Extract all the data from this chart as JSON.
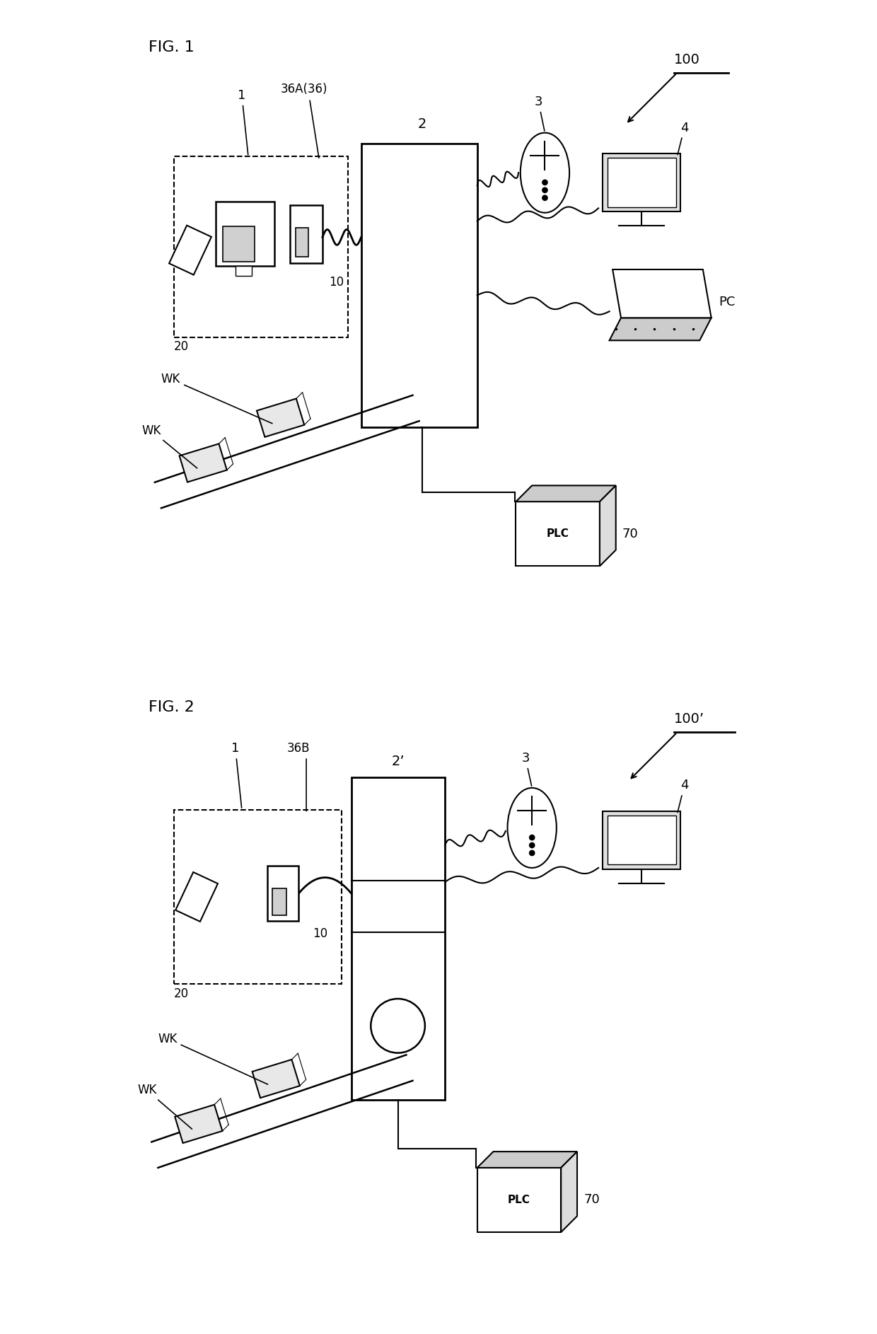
{
  "fig1_label": "FIG. 1",
  "fig2_label": "FIG. 2",
  "bg_color": "#ffffff",
  "line_color": "#000000",
  "fig1_system_label": "100",
  "fig2_system_label": "100’",
  "label_color": "#1a1a1a"
}
